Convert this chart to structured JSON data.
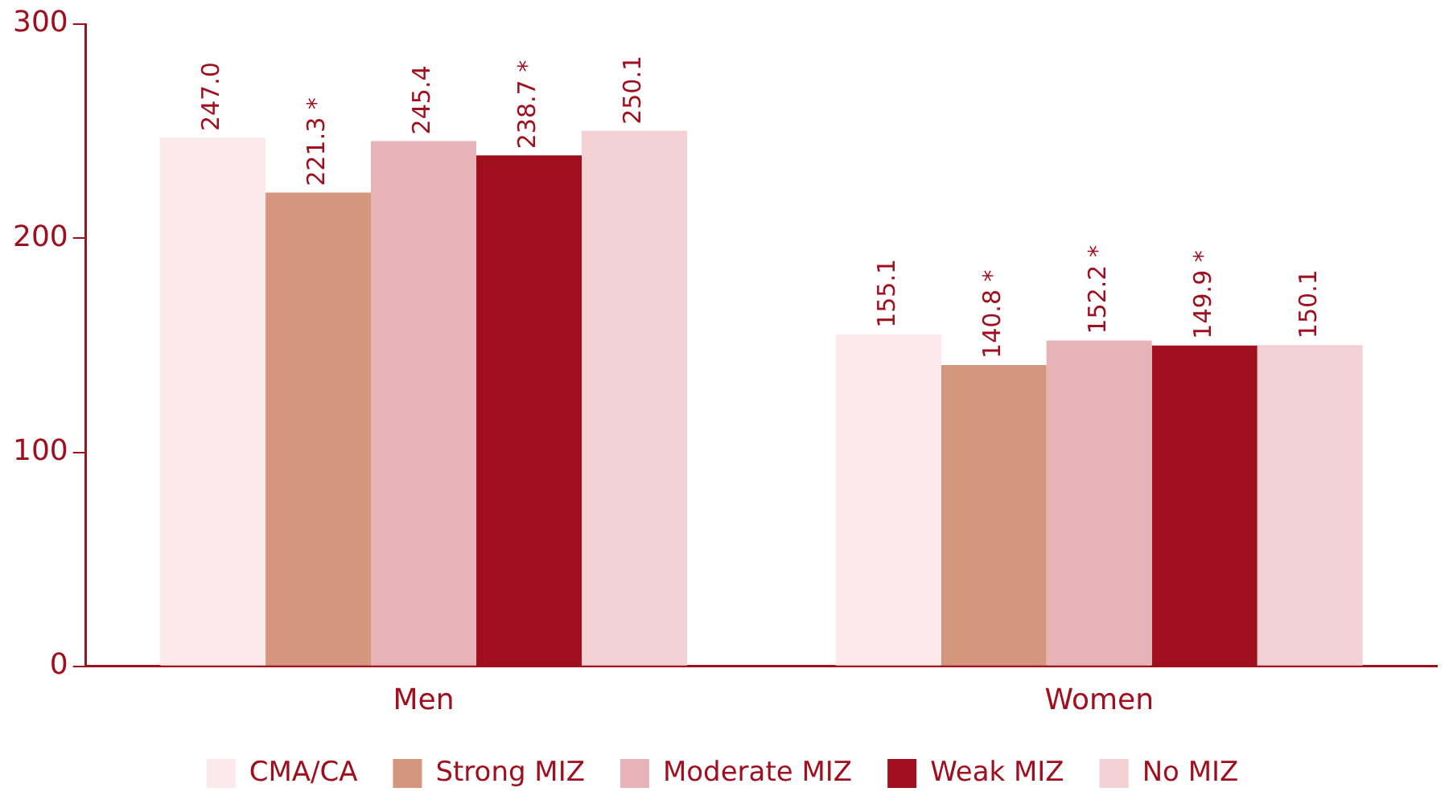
{
  "chart_data": {
    "type": "bar",
    "categories": [
      "Men",
      "Women"
    ],
    "ylim": [
      0,
      300
    ],
    "yticks": [
      0,
      100,
      200,
      300
    ],
    "grid": false,
    "legend": "bottom",
    "series": [
      {
        "name": "CMA/CA",
        "color": "#fbe9eb",
        "values": [
          247.0,
          155.1
        ],
        "value_labels": [
          "247.0",
          "155.1"
        ]
      },
      {
        "name": "Strong MIZ",
        "color": "#d4967f",
        "values": [
          221.3,
          140.8
        ],
        "value_labels": [
          "221.3 *",
          "140.8 *"
        ]
      },
      {
        "name": "Moderate MIZ",
        "color": "#e8b3b7",
        "values": [
          245.4,
          152.2
        ],
        "value_labels": [
          "245.4",
          "152.2 *"
        ]
      },
      {
        "name": "Weak MIZ",
        "color": "#a00f1e",
        "values": [
          238.7,
          149.9
        ],
        "value_labels": [
          "238.7 *",
          "149.9 *"
        ]
      },
      {
        "name": "No MIZ",
        "color": "#f3d0d3",
        "values": [
          250.1,
          150.1
        ],
        "value_labels": [
          "250.1",
          "150.1"
        ]
      }
    ]
  }
}
